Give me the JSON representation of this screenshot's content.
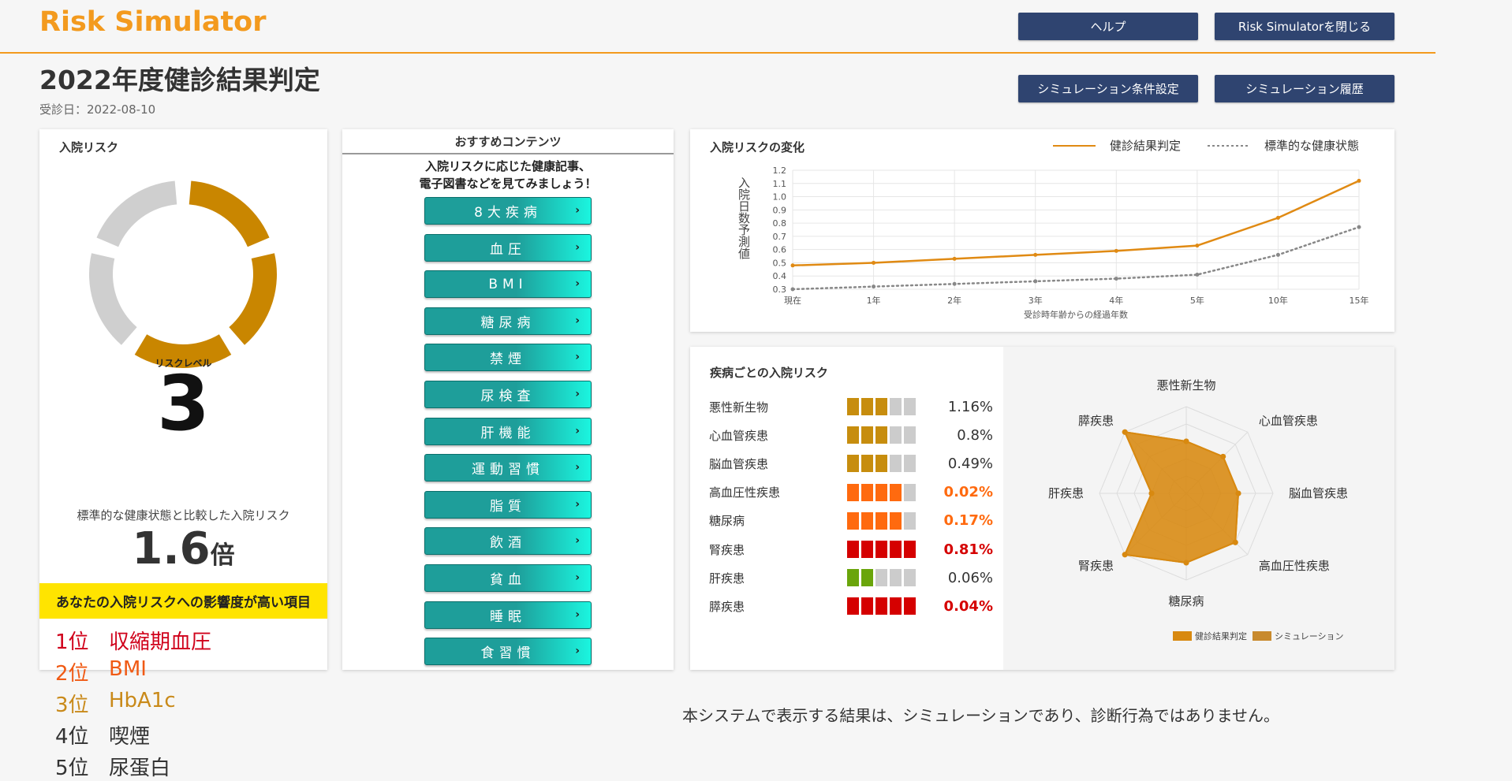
{
  "header": {
    "app_title": "Risk Simulator",
    "help_label": "ヘルプ",
    "close_label": "Risk Simulatorを閉じる",
    "sim_settings_label": "シミュレーション条件設定",
    "sim_history_label": "シミュレーション履歴"
  },
  "page": {
    "title": "2022年度健診結果判定",
    "exam_date": "受診日：2022-08-10"
  },
  "risk_card": {
    "title": "入院リスク",
    "level_label": "リスクレベル",
    "level_value": "3",
    "level_max": 5,
    "gauge_active_color": "#c98600",
    "gauge_inactive_color": "#cfcfcf",
    "compare_label": "標準的な健康状態と比較した入院リスク",
    "ratio_value": "1.6",
    "ratio_unit": "倍",
    "impact_title": "あなたの入院リスクへの影響度が高い項目",
    "ranks": [
      {
        "pos": "1位",
        "name": "収縮期血圧",
        "color": "#d0021b"
      },
      {
        "pos": "2位",
        "name": "BMI",
        "color": "#f05a14"
      },
      {
        "pos": "3位",
        "name": "HbA1c",
        "color": "#c98a1a"
      },
      {
        "pos": "4位",
        "name": "喫煙",
        "color": "#333333"
      },
      {
        "pos": "5位",
        "name": "尿蛋白",
        "color": "#333333"
      }
    ]
  },
  "recommend": {
    "title": "おすすめコンテンツ",
    "desc_line1": "入院リスクに応じた健康記事、",
    "desc_line2": "電子図書などを見てみましょう！",
    "items": [
      "8大疾病",
      "血圧",
      "BMI",
      "糖尿病",
      "禁煙",
      "尿検査",
      "肝機能",
      "運動習慣",
      "脂質",
      "飲酒",
      "貧血",
      "睡眠",
      "食習慣"
    ],
    "chevron": "›"
  },
  "chart_data": [
    {
      "type": "line",
      "title": "入院リスクの変化",
      "ylabel": "入院日数予測値",
      "xlabel": "受診時年齢からの経過年数",
      "categories": [
        "現在",
        "1年",
        "2年",
        "3年",
        "4年",
        "5年",
        "10年",
        "15年"
      ],
      "ylim": [
        0.3,
        1.2
      ],
      "yticks": [
        "1.2",
        "1.1",
        "1.0",
        "0.9",
        "0.8",
        "0.7",
        "0.6",
        "0.5",
        "0.4",
        "0.3"
      ],
      "grid": true,
      "legend": "top-right",
      "series": [
        {
          "name": "健診結果判定",
          "values": [
            0.48,
            0.5,
            0.53,
            0.56,
            0.59,
            0.63,
            0.84,
            1.12
          ],
          "color": "#e08a13",
          "style": "solid"
        },
        {
          "name": "標準的な健康状態",
          "values": [
            0.3,
            0.32,
            0.34,
            0.36,
            0.38,
            0.41,
            0.56,
            0.77
          ],
          "color": "#888888",
          "style": "dotted"
        }
      ]
    },
    {
      "type": "radar",
      "categories": [
        "悪性新生物",
        "心血管疾患",
        "脳血管疾患",
        "高血圧性疾患",
        "糖尿病",
        "腎疾患",
        "肝疾患",
        "膵疾患"
      ],
      "rmax": 5,
      "legend": "bottom-right",
      "series": [
        {
          "name": "健診結果判定",
          "values": [
            3,
            3,
            3,
            4,
            4,
            5,
            2,
            5
          ],
          "color": "#d88910"
        },
        {
          "name": "シミュレーション",
          "values": [
            3,
            3,
            3,
            4,
            4,
            5,
            2,
            5
          ],
          "color": "#c88a2e"
        }
      ]
    }
  ],
  "disease_list": {
    "title": "疾病ごとの入院リスク",
    "rows": [
      {
        "name": "悪性新生物",
        "pct": "1.16%",
        "level": 3,
        "color": "#c78d0e",
        "pct_color": "#333333",
        "bold": false
      },
      {
        "name": "心血管疾患",
        "pct": "0.8%",
        "level": 3,
        "color": "#c78d0e",
        "pct_color": "#333333",
        "bold": false
      },
      {
        "name": "脳血管疾患",
        "pct": "0.49%",
        "level": 3,
        "color": "#c78d0e",
        "pct_color": "#333333",
        "bold": false
      },
      {
        "name": "高血圧性疾患",
        "pct": "0.02%",
        "level": 4,
        "color": "#ff6a0f",
        "pct_color": "#ff6a0f",
        "bold": true
      },
      {
        "name": "糖尿病",
        "pct": "0.17%",
        "level": 4,
        "color": "#ff6a0f",
        "pct_color": "#ff6a0f",
        "bold": true
      },
      {
        "name": "腎疾患",
        "pct": "0.81%",
        "level": 5,
        "color": "#d50000",
        "pct_color": "#d50000",
        "bold": true
      },
      {
        "name": "肝疾患",
        "pct": "0.06%",
        "level": 2,
        "color": "#6aa50b",
        "pct_color": "#333333",
        "bold": false
      },
      {
        "name": "膵疾患",
        "pct": "0.04%",
        "level": 5,
        "color": "#d50000",
        "pct_color": "#d50000",
        "bold": true
      }
    ]
  },
  "footer": {
    "note": "本システムで表示する結果は、シミュレーションであり、診断行為ではありません。"
  }
}
